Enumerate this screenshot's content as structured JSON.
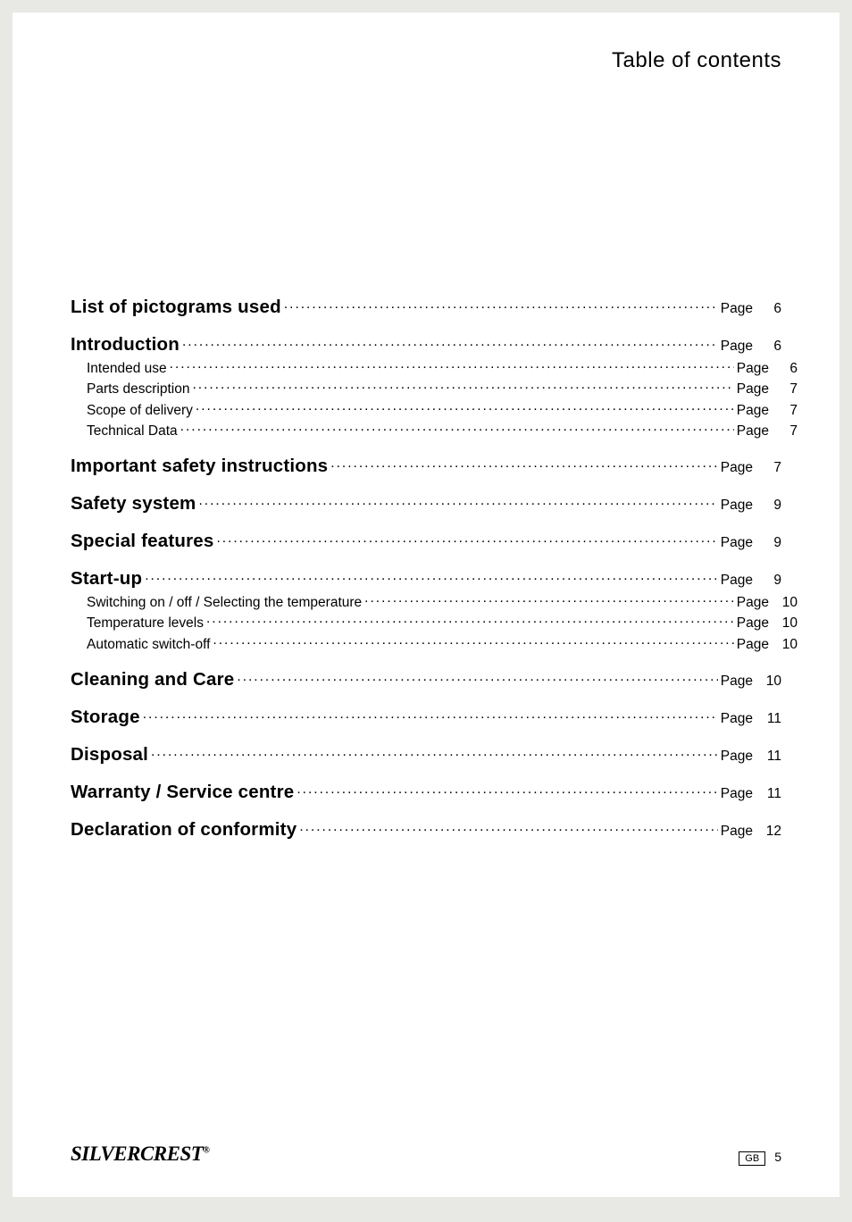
{
  "header": {
    "title": "Table of contents"
  },
  "toc": {
    "entries": [
      {
        "title": "List of pictograms used",
        "page_label": "Page",
        "page_num": "6",
        "bold": true,
        "section": true
      },
      {
        "title": "Introduction",
        "page_label": "Page",
        "page_num": "6",
        "bold": true,
        "section": true
      },
      {
        "title": "Intended use",
        "page_label": "Page",
        "page_num": "6",
        "bold": false,
        "sub": true
      },
      {
        "title": "Parts description",
        "page_label": "Page",
        "page_num": "7",
        "bold": false,
        "sub": true
      },
      {
        "title": "Scope of delivery",
        "page_label": "Page",
        "page_num": "7",
        "bold": false,
        "sub": true
      },
      {
        "title": "Technical Data",
        "page_label": "Page",
        "page_num": "7",
        "bold": false,
        "sub": true
      },
      {
        "title": "Important safety instructions",
        "page_label": "Page",
        "page_num": "7",
        "bold": true,
        "section": true
      },
      {
        "title": "Safety system",
        "page_label": "Page",
        "page_num": "9",
        "bold": true,
        "section": true
      },
      {
        "title": "Special features",
        "page_label": "Page",
        "page_num": "9",
        "bold": true,
        "section": true
      },
      {
        "title": "Start-up",
        "page_label": "Page",
        "page_num": "9",
        "bold": true,
        "section": true
      },
      {
        "title": "Switching on / off / Selecting the temperature",
        "page_label": "Page",
        "page_num": "10",
        "bold": false,
        "sub": true
      },
      {
        "title": "Temperature levels",
        "page_label": "Page",
        "page_num": "10",
        "bold": false,
        "sub": true
      },
      {
        "title": "Automatic switch-off",
        "page_label": "Page",
        "page_num": "10",
        "bold": false,
        "sub": true
      },
      {
        "title": "Cleaning and Care",
        "page_label": "Page",
        "page_num": "10",
        "bold": true,
        "section": true
      },
      {
        "title": "Storage",
        "page_label": "Page",
        "page_num": "11",
        "bold": true,
        "section": true
      },
      {
        "title": "Disposal",
        "page_label": "Page",
        "page_num": "11",
        "bold": true,
        "section": true
      },
      {
        "title": "Warranty / Service centre",
        "page_label": "Page",
        "page_num": "11",
        "bold": true,
        "section": true
      },
      {
        "title": "Declaration of conformity",
        "page_label": "Page",
        "page_num": "12",
        "bold": true,
        "section": true
      }
    ]
  },
  "footer": {
    "brand_main": "SILVER",
    "brand_sub": "CREST",
    "trademark": "®",
    "lang_code": "GB",
    "page_number": "5"
  }
}
